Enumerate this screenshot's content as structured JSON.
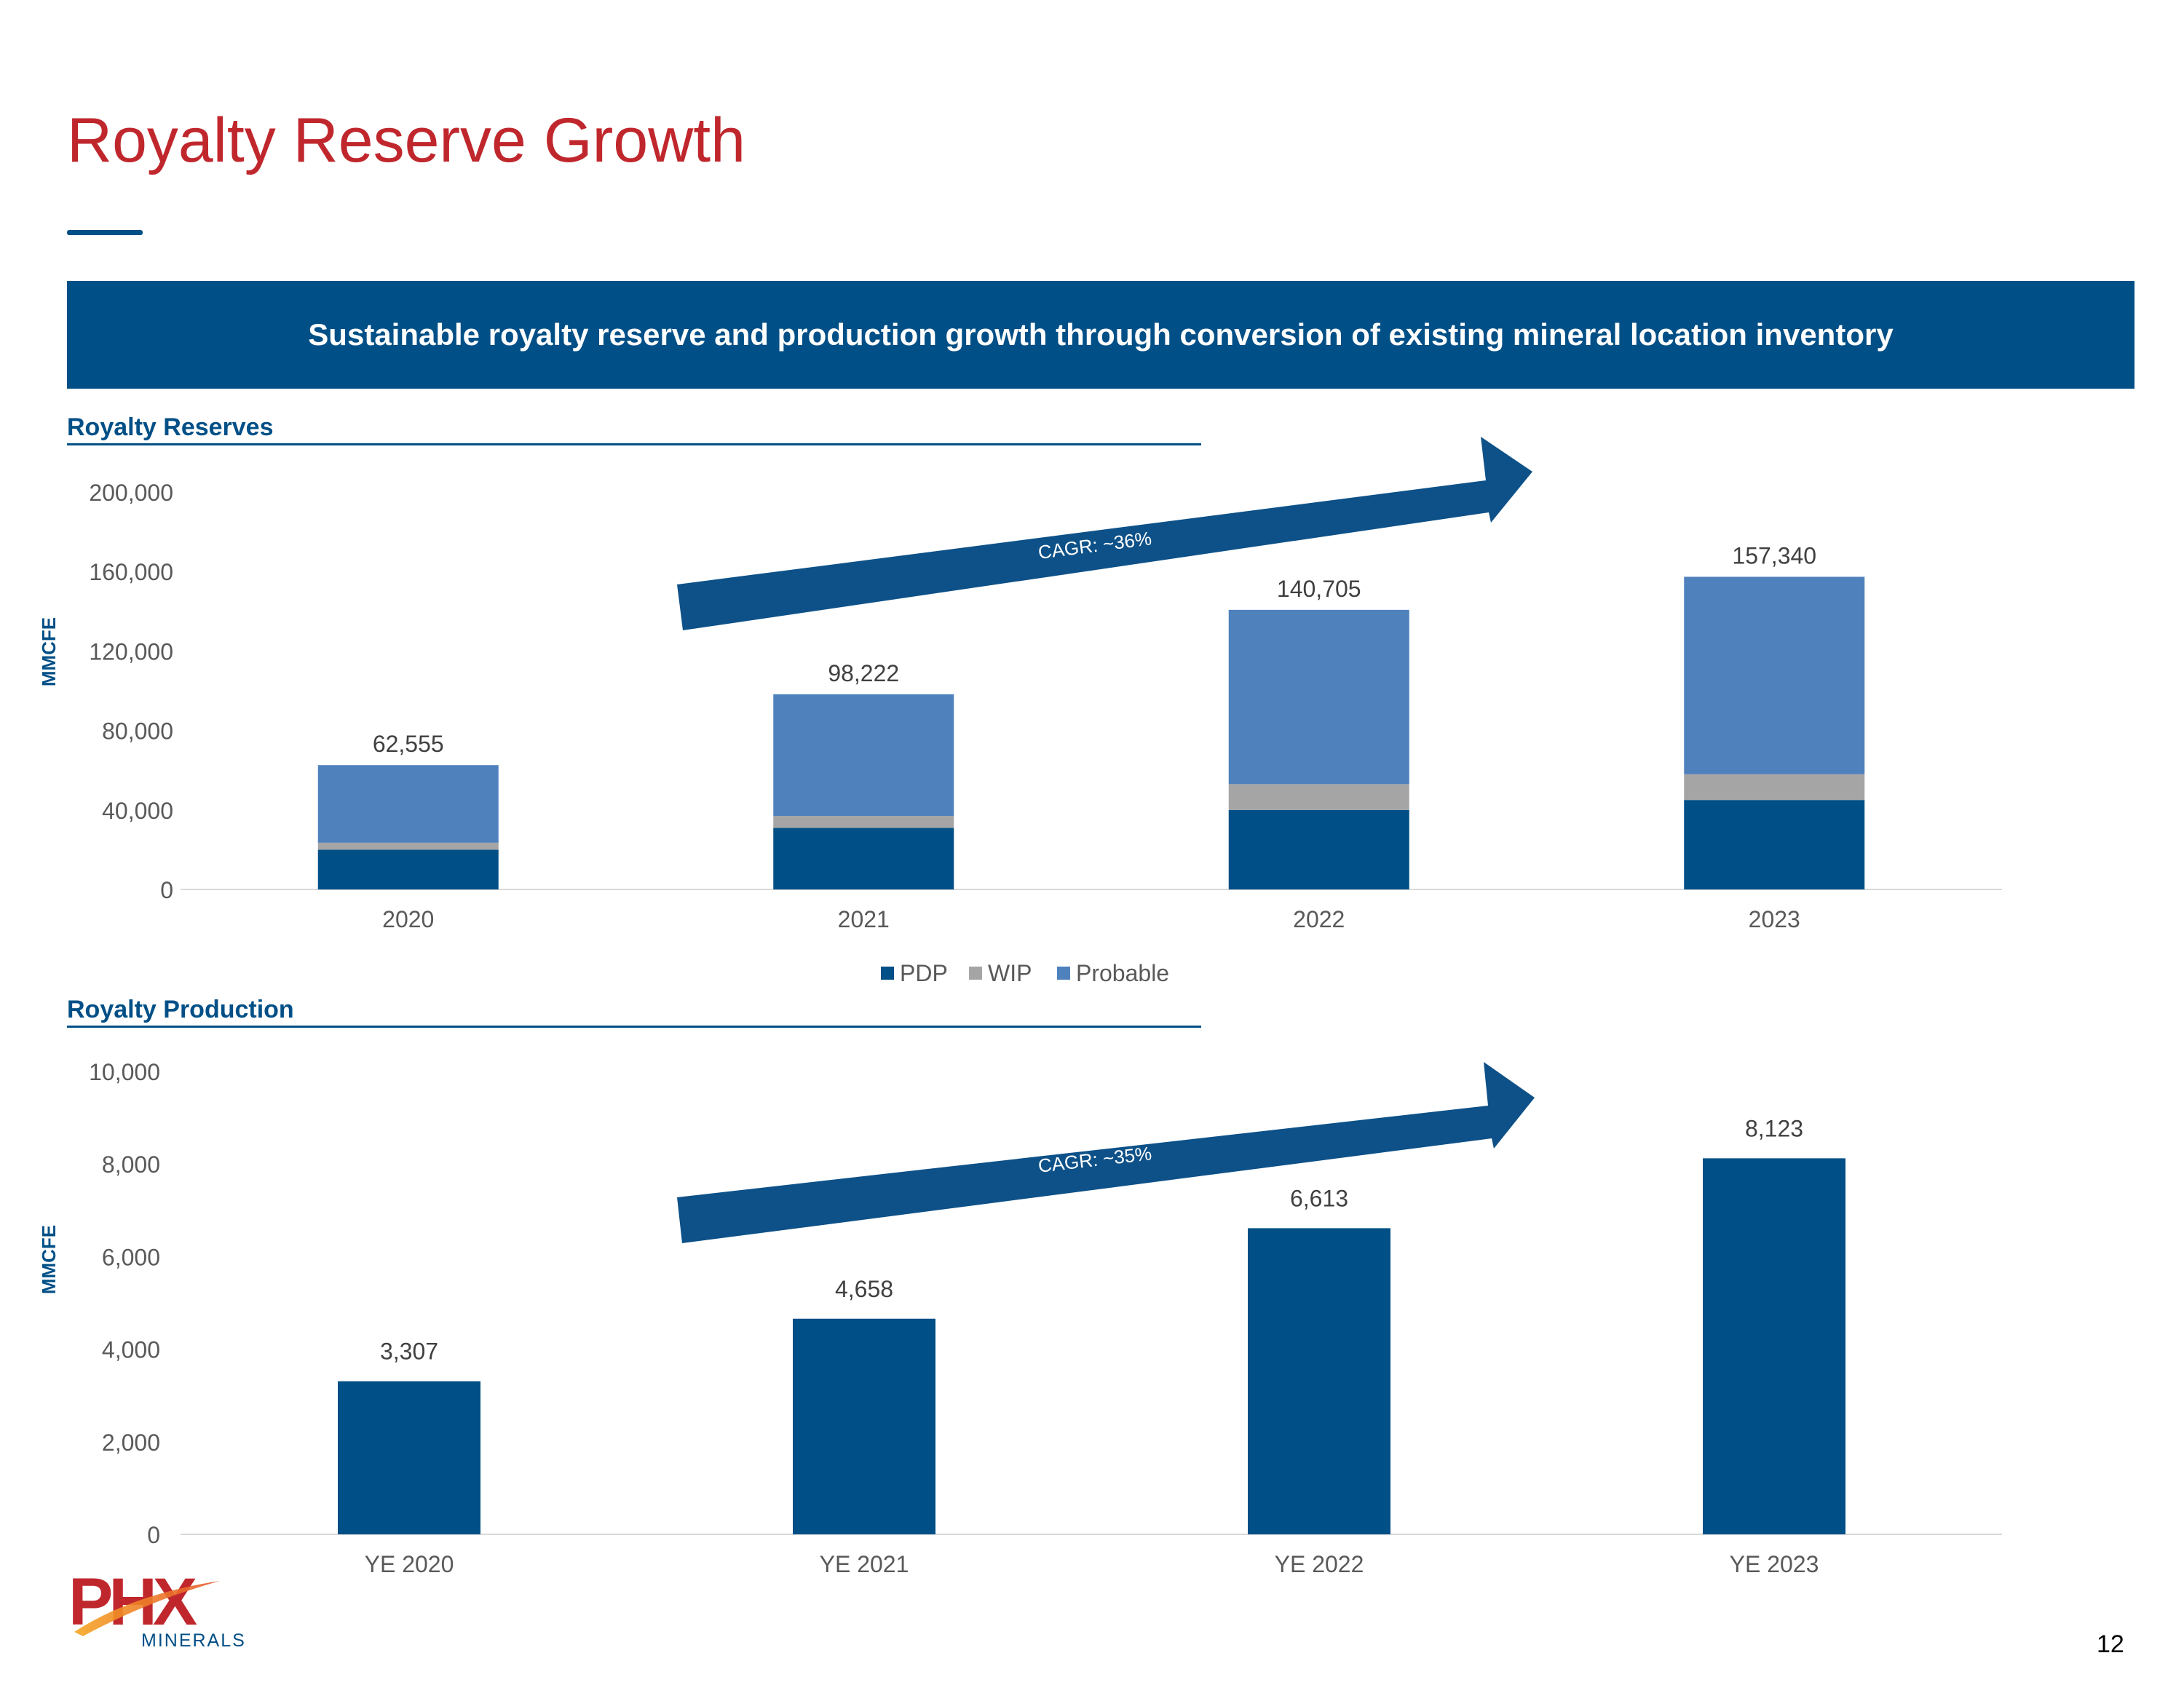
{
  "page": {
    "title": "Royalty Reserve Growth",
    "banner": "Sustainable royalty reserve and production growth through conversion of existing mineral location inventory",
    "page_number": "12",
    "logo": {
      "brand": "PHX",
      "sub": "MINERALS"
    }
  },
  "colors": {
    "pdp": "#004f86",
    "wip": "#a5a5a5",
    "probable": "#4f81bd",
    "arrow": "#0d5188",
    "title": "#c0272d"
  },
  "chart_data": [
    {
      "type": "bar",
      "stacked": true,
      "section_title": "Royalty Reserves",
      "ylabel": "MMCFE",
      "ylim": [
        0,
        200000
      ],
      "yticks": [
        "0",
        "40,000",
        "80,000",
        "120,000",
        "160,000",
        "200,000"
      ],
      "categories": [
        "2020",
        "2021",
        "2022",
        "2023"
      ],
      "series": [
        {
          "name": "PDP",
          "values": [
            20000,
            31000,
            40000,
            45000
          ]
        },
        {
          "name": "WIP",
          "values": [
            3500,
            6000,
            13000,
            13000
          ]
        },
        {
          "name": "Probable",
          "values": [
            39055,
            61222,
            87705,
            99340
          ]
        }
      ],
      "totals": [
        "62,555",
        "98,222",
        "140,705",
        "157,340"
      ],
      "annotation": "CAGR: ~36%",
      "legend": "bottom"
    },
    {
      "type": "bar",
      "section_title": "Royalty Production",
      "ylabel": "MMCFE",
      "ylim": [
        0,
        10000
      ],
      "yticks": [
        "0",
        "2,000",
        "4,000",
        "6,000",
        "8,000",
        "10,000"
      ],
      "categories": [
        "YE 2020",
        "YE 2021",
        "YE 2022",
        "YE 2023"
      ],
      "values": [
        3307,
        4658,
        6613,
        8123
      ],
      "value_labels": [
        "3,307",
        "4,658",
        "6,613",
        "8,123"
      ],
      "annotation": "CAGR: ~35%"
    }
  ]
}
